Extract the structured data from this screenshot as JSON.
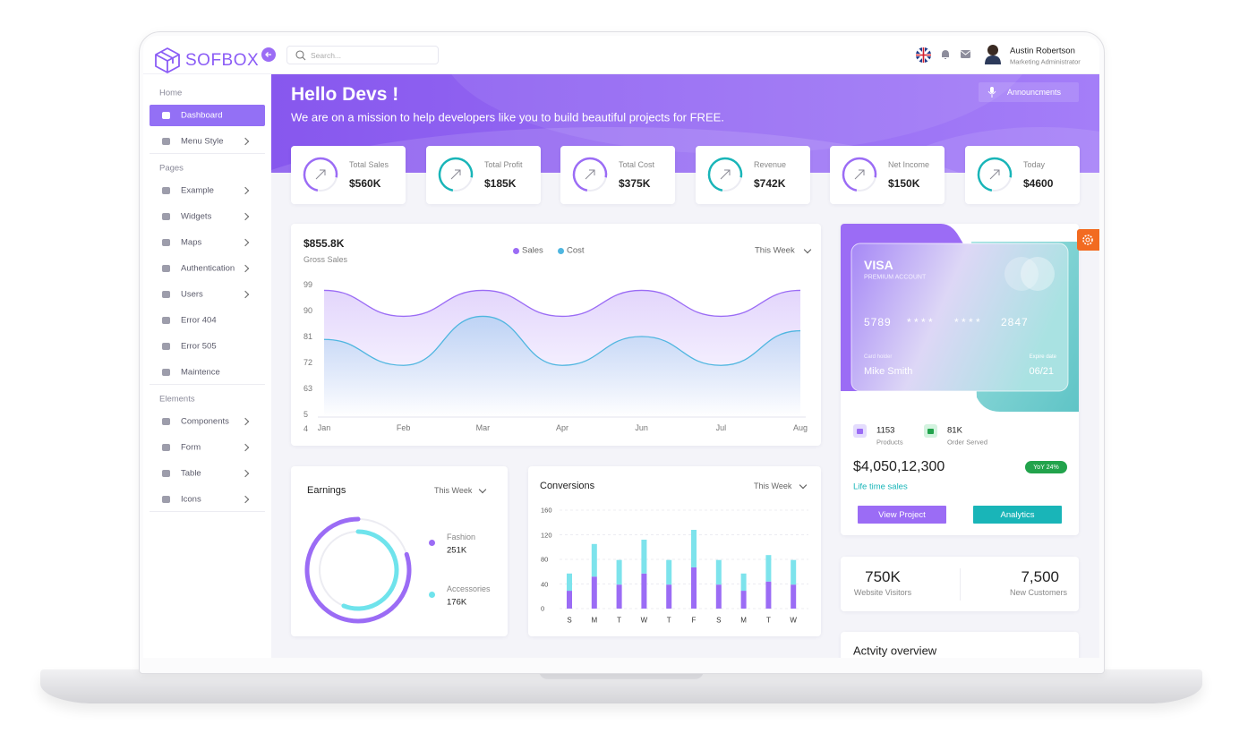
{
  "header": {
    "brand": "SOFBOX",
    "search_placeholder": "Search...",
    "user_name": "Austin Robertson",
    "user_role": "Marketing Administrator"
  },
  "sidebar": {
    "sections": [
      {
        "title": "Home",
        "items": [
          {
            "label": "Dashboard",
            "active": true,
            "arrow": false
          },
          {
            "label": "Menu Style",
            "arrow": true
          }
        ]
      },
      {
        "title": "Pages",
        "items": [
          {
            "label": "Example",
            "arrow": true
          },
          {
            "label": "Widgets",
            "arrow": true
          },
          {
            "label": "Maps",
            "arrow": true
          },
          {
            "label": "Authentication",
            "arrow": true
          },
          {
            "label": "Users",
            "arrow": true
          },
          {
            "label": "Error 404",
            "arrow": false
          },
          {
            "label": "Error 505",
            "arrow": false
          },
          {
            "label": "Maintence",
            "arrow": false
          }
        ]
      },
      {
        "title": "Elements",
        "items": [
          {
            "label": "Components",
            "arrow": true
          },
          {
            "label": "Form",
            "arrow": true
          },
          {
            "label": "Table",
            "arrow": true
          },
          {
            "label": "Icons",
            "arrow": true
          }
        ]
      }
    ]
  },
  "banner": {
    "title": "Hello Devs !",
    "subtitle": "We are on a mission to help developers like you to build beautiful projects for FREE.",
    "button": "Announcments"
  },
  "stats": [
    {
      "label": "Total Sales",
      "value": "$560K",
      "ring_color": "#9b6cf5"
    },
    {
      "label": "Total Profit",
      "value": "$185K",
      "ring_color": "#19b5b8"
    },
    {
      "label": "Total Cost",
      "value": "$375K",
      "ring_color": "#9b6cf5"
    },
    {
      "label": "Revenue",
      "value": "$742K",
      "ring_color": "#19b5b8"
    },
    {
      "label": "Net Income",
      "value": "$150K",
      "ring_color": "#9b6cf5"
    },
    {
      "label": "Today",
      "value": "$4600",
      "ring_color": "#19b5b8"
    }
  ],
  "gross_sales": {
    "type": "area",
    "value": "$855.8K",
    "label": "Gross Sales",
    "period": "This Week",
    "categories": [
      "Jan",
      "Feb",
      "Mar",
      "Apr",
      "Jun",
      "Jul",
      "Aug"
    ],
    "series": [
      {
        "name": "Sales",
        "color": "#9b6cf5",
        "values": [
          97,
          88,
          97,
          88,
          97,
          88,
          97
        ]
      },
      {
        "name": "Cost",
        "color": "#4fb6e0",
        "values": [
          80,
          71,
          88,
          71,
          81,
          71,
          83
        ]
      }
    ],
    "ylim": [
      54,
      99
    ],
    "yticks": [
      99,
      90,
      81,
      72,
      63
    ],
    "extra_tick_labels": [
      "5",
      "4"
    ]
  },
  "earnings": {
    "type": "donut",
    "title": "Earnings",
    "period": "This Week",
    "categories": [
      "Fashion",
      "Accessories"
    ],
    "values": [
      251000,
      176000
    ],
    "value_labels": [
      "251K",
      "176K"
    ],
    "colors": [
      "#9b6cf5",
      "#6fe3ec"
    ]
  },
  "conversions": {
    "type": "bar",
    "stacked": true,
    "title": "Conversions",
    "period": "This Week",
    "categories": [
      "S",
      "M",
      "T",
      "W",
      "T",
      "F",
      "S",
      "M",
      "T",
      "W"
    ],
    "series": [
      {
        "color": "#9b6cf5",
        "values": [
          29,
          52,
          39,
          57,
          39,
          67,
          39,
          29,
          44,
          39
        ]
      },
      {
        "color": "#7de3ec",
        "values": [
          28,
          53,
          40,
          55,
          40,
          61,
          40,
          28,
          43,
          40
        ]
      }
    ],
    "ylim": [
      0,
      160
    ],
    "yticks": [
      0,
      40,
      80,
      120,
      160
    ],
    "grid": true
  },
  "card": {
    "brand": "VISA",
    "tier": "PREMIUM ACCOUNT",
    "number": [
      "5789",
      "* * * *",
      "* * * *",
      "2847"
    ],
    "holder_label": "Card holder",
    "holder": "Mike Smith",
    "expiry_label": "Expire date",
    "expiry": "06/21"
  },
  "summary": {
    "products": "1153",
    "products_label": "Products",
    "orders": "81K",
    "orders_label": "Order Served",
    "total": "$4,050,12,300",
    "badge": "YoY 24%",
    "total_label": "Life time sales",
    "buttons": [
      "View Project",
      "Analytics"
    ]
  },
  "visitors": [
    {
      "value": "750K",
      "label": "Website Visitors"
    },
    {
      "value": "7,500",
      "label": "New Customers"
    }
  ],
  "activity": {
    "title": "Actvity overview"
  }
}
